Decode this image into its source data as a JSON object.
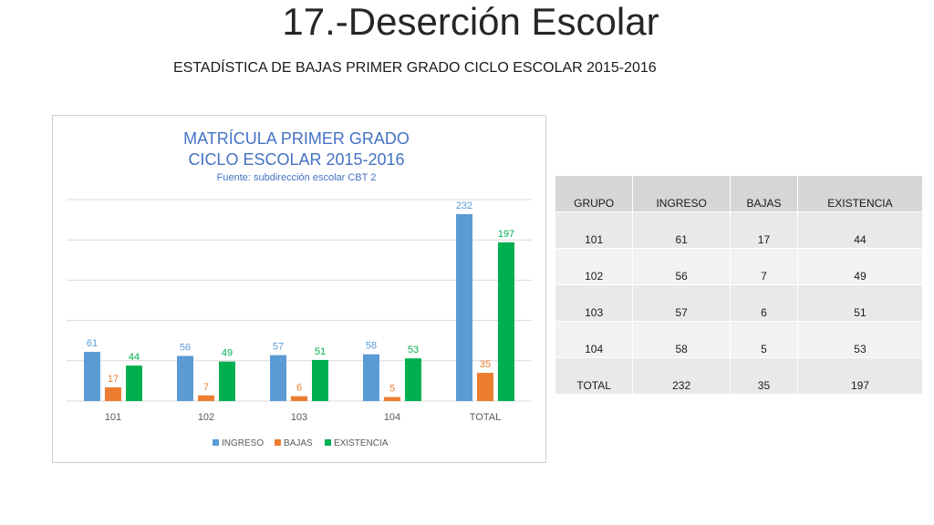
{
  "slide": {
    "title": "17.-Deserción Escolar",
    "subtitle": "ESTADÍSTICA DE BAJAS PRIMER GRADO CICLO ESCOLAR 2015-2016"
  },
  "colors": {
    "ingreso": "#5b9bd5",
    "bajas": "#ed7d31",
    "existencia": "#00b050",
    "title": "#4472c4",
    "grid": "#d9d9d9"
  },
  "chart_data": {
    "type": "bar",
    "title_lines": [
      "MATRÍCULA PRIMER GRADO",
      "CICLO ESCOLAR 2015-2016"
    ],
    "subtitle": "Fuente: subdirección escolar CBT 2",
    "categories": [
      "101",
      "102",
      "103",
      "104",
      "TOTAL"
    ],
    "series": [
      {
        "name": "INGRESO",
        "values": [
          61,
          56,
          57,
          58,
          232
        ]
      },
      {
        "name": "BAJAS",
        "values": [
          17,
          7,
          6,
          5,
          35
        ]
      },
      {
        "name": "EXISTENCIA",
        "values": [
          44,
          49,
          51,
          53,
          197
        ]
      }
    ],
    "ylim": [
      0,
      250
    ],
    "grid": true,
    "legend": "bottom"
  },
  "table": {
    "headers": [
      "GRUPO",
      "INGRESO",
      "BAJAS",
      "EXISTENCIA"
    ],
    "rows": [
      [
        "101",
        "61",
        "17",
        "44"
      ],
      [
        "102",
        "56",
        "7",
        "49"
      ],
      [
        "103",
        "57",
        "6",
        "51"
      ],
      [
        "104",
        "58",
        "5",
        "53"
      ],
      [
        "TOTAL",
        "232",
        "35",
        "197"
      ]
    ]
  }
}
